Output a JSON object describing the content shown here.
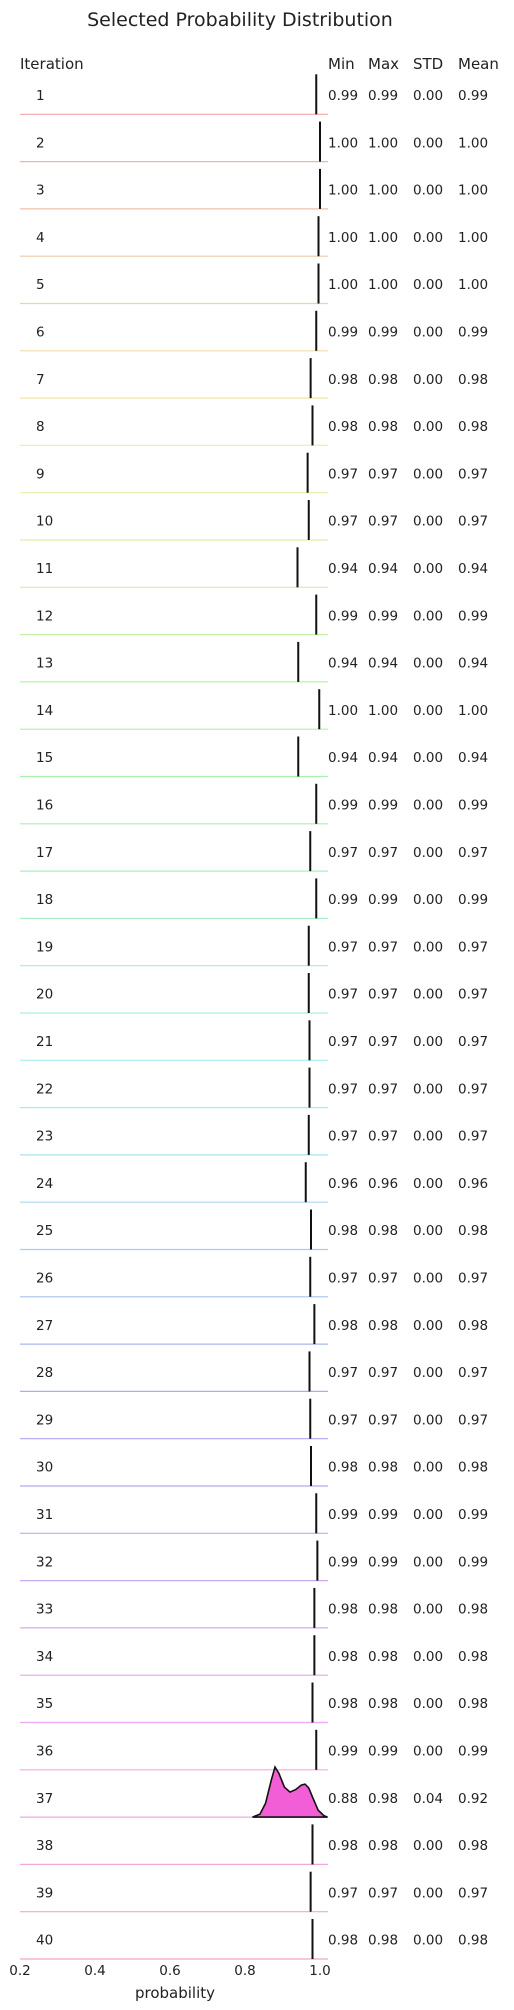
{
  "chart_data": {
    "type": "ridgeline",
    "title": "Selected Probability Distribution",
    "xlabel": "probability",
    "row_header": "Iteration",
    "stat_headers": [
      "Min",
      "Max",
      "STD",
      "Mean"
    ],
    "xlim": [
      0.2,
      1.0
    ],
    "xticks": [
      "0.2",
      "0.4",
      "0.6",
      "0.8",
      "1.0"
    ],
    "xtick_values": [
      0.2,
      0.4,
      0.6,
      0.8,
      1.0
    ],
    "rows": [
      {
        "iteration": "1",
        "min": "0.99",
        "max": "0.99",
        "std": "0.00",
        "mean": "0.99",
        "value": 0.99
      },
      {
        "iteration": "2",
        "min": "1.00",
        "max": "1.00",
        "std": "0.00",
        "mean": "1.00",
        "value": 1.0
      },
      {
        "iteration": "3",
        "min": "1.00",
        "max": "1.00",
        "std": "0.00",
        "mean": "1.00",
        "value": 1.0
      },
      {
        "iteration": "4",
        "min": "1.00",
        "max": "1.00",
        "std": "0.00",
        "mean": "1.00",
        "value": 0.996
      },
      {
        "iteration": "5",
        "min": "1.00",
        "max": "1.00",
        "std": "0.00",
        "mean": "1.00",
        "value": 0.996
      },
      {
        "iteration": "6",
        "min": "0.99",
        "max": "0.99",
        "std": "0.00",
        "mean": "0.99",
        "value": 0.99
      },
      {
        "iteration": "7",
        "min": "0.98",
        "max": "0.98",
        "std": "0.00",
        "mean": "0.98",
        "value": 0.975
      },
      {
        "iteration": "8",
        "min": "0.98",
        "max": "0.98",
        "std": "0.00",
        "mean": "0.98",
        "value": 0.98
      },
      {
        "iteration": "9",
        "min": "0.97",
        "max": "0.97",
        "std": "0.00",
        "mean": "0.97",
        "value": 0.967
      },
      {
        "iteration": "10",
        "min": "0.97",
        "max": "0.97",
        "std": "0.00",
        "mean": "0.97",
        "value": 0.97
      },
      {
        "iteration": "11",
        "min": "0.94",
        "max": "0.94",
        "std": "0.00",
        "mean": "0.94",
        "value": 0.94
      },
      {
        "iteration": "12",
        "min": "0.99",
        "max": "0.99",
        "std": "0.00",
        "mean": "0.99",
        "value": 0.99
      },
      {
        "iteration": "13",
        "min": "0.94",
        "max": "0.94",
        "std": "0.00",
        "mean": "0.94",
        "value": 0.942
      },
      {
        "iteration": "14",
        "min": "1.00",
        "max": "1.00",
        "std": "0.00",
        "mean": "1.00",
        "value": 0.998
      },
      {
        "iteration": "15",
        "min": "0.94",
        "max": "0.94",
        "std": "0.00",
        "mean": "0.94",
        "value": 0.942
      },
      {
        "iteration": "16",
        "min": "0.99",
        "max": "0.99",
        "std": "0.00",
        "mean": "0.99",
        "value": 0.99
      },
      {
        "iteration": "17",
        "min": "0.97",
        "max": "0.97",
        "std": "0.00",
        "mean": "0.97",
        "value": 0.974
      },
      {
        "iteration": "18",
        "min": "0.99",
        "max": "0.99",
        "std": "0.00",
        "mean": "0.99",
        "value": 0.99
      },
      {
        "iteration": "19",
        "min": "0.97",
        "max": "0.97",
        "std": "0.00",
        "mean": "0.97",
        "value": 0.97
      },
      {
        "iteration": "20",
        "min": "0.97",
        "max": "0.97",
        "std": "0.00",
        "mean": "0.97",
        "value": 0.97
      },
      {
        "iteration": "21",
        "min": "0.97",
        "max": "0.97",
        "std": "0.00",
        "mean": "0.97",
        "value": 0.972
      },
      {
        "iteration": "22",
        "min": "0.97",
        "max": "0.97",
        "std": "0.00",
        "mean": "0.97",
        "value": 0.972
      },
      {
        "iteration": "23",
        "min": "0.97",
        "max": "0.97",
        "std": "0.00",
        "mean": "0.97",
        "value": 0.97
      },
      {
        "iteration": "24",
        "min": "0.96",
        "max": "0.96",
        "std": "0.00",
        "mean": "0.96",
        "value": 0.962
      },
      {
        "iteration": "25",
        "min": "0.98",
        "max": "0.98",
        "std": "0.00",
        "mean": "0.98",
        "value": 0.976
      },
      {
        "iteration": "26",
        "min": "0.97",
        "max": "0.97",
        "std": "0.00",
        "mean": "0.97",
        "value": 0.974
      },
      {
        "iteration": "27",
        "min": "0.98",
        "max": "0.98",
        "std": "0.00",
        "mean": "0.98",
        "value": 0.985
      },
      {
        "iteration": "28",
        "min": "0.97",
        "max": "0.97",
        "std": "0.00",
        "mean": "0.97",
        "value": 0.972
      },
      {
        "iteration": "29",
        "min": "0.97",
        "max": "0.97",
        "std": "0.00",
        "mean": "0.97",
        "value": 0.974
      },
      {
        "iteration": "30",
        "min": "0.98",
        "max": "0.98",
        "std": "0.00",
        "mean": "0.98",
        "value": 0.976
      },
      {
        "iteration": "31",
        "min": "0.99",
        "max": "0.99",
        "std": "0.00",
        "mean": "0.99",
        "value": 0.99
      },
      {
        "iteration": "32",
        "min": "0.99",
        "max": "0.99",
        "std": "0.00",
        "mean": "0.99",
        "value": 0.993
      },
      {
        "iteration": "33",
        "min": "0.98",
        "max": "0.98",
        "std": "0.00",
        "mean": "0.98",
        "value": 0.985
      },
      {
        "iteration": "34",
        "min": "0.98",
        "max": "0.98",
        "std": "0.00",
        "mean": "0.98",
        "value": 0.985
      },
      {
        "iteration": "35",
        "min": "0.98",
        "max": "0.98",
        "std": "0.00",
        "mean": "0.98",
        "value": 0.98
      },
      {
        "iteration": "36",
        "min": "0.99",
        "max": "0.99",
        "std": "0.00",
        "mean": "0.99",
        "value": 0.99
      },
      {
        "iteration": "37",
        "min": "0.88",
        "max": "0.98",
        "std": "0.04",
        "mean": "0.92",
        "value": 0.92,
        "density_x": [
          0.82,
          0.84,
          0.855,
          0.87,
          0.88,
          0.89,
          0.905,
          0.92,
          0.935,
          0.95,
          0.96,
          0.97,
          0.98,
          0.995,
          1.01,
          1.02
        ],
        "density_y": [
          0.0,
          0.06,
          0.28,
          0.74,
          1.0,
          0.88,
          0.6,
          0.5,
          0.55,
          0.64,
          0.66,
          0.58,
          0.4,
          0.14,
          0.03,
          0.0
        ]
      },
      {
        "iteration": "38",
        "min": "0.98",
        "max": "0.98",
        "std": "0.00",
        "mean": "0.98",
        "value": 0.98
      },
      {
        "iteration": "39",
        "min": "0.97",
        "max": "0.97",
        "std": "0.00",
        "mean": "0.97",
        "value": 0.975
      },
      {
        "iteration": "40",
        "min": "0.98",
        "max": "0.98",
        "std": "0.00",
        "mean": "0.98",
        "value": 0.98
      }
    ],
    "colors": {
      "peak_fill": "#f25ed6",
      "line": "#111111"
    }
  }
}
